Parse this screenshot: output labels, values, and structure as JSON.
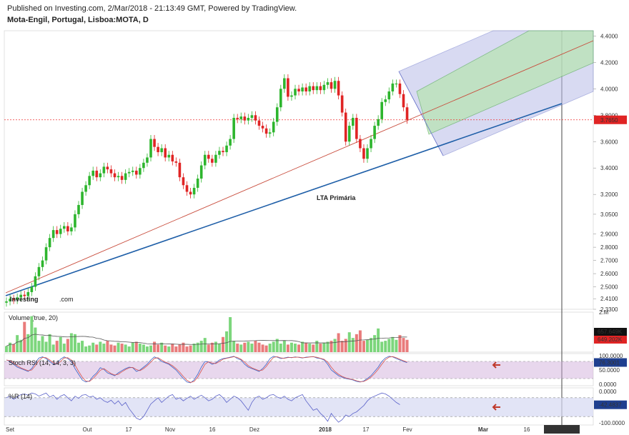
{
  "header": {
    "published": "Published on Investing.com, 2/Mar/2018 - 21:13:49 GMT, Powered by TradingView.",
    "symbol": "Mota-Engil, Portugal, Lisboa:MOTA, D"
  },
  "colors": {
    "up": "#2db52d",
    "down": "#e02424",
    "up_vol": "#7cd67c",
    "down_vol": "#e97b7b",
    "trend": "#1f5fa8",
    "channel_mid": "#c84a3a",
    "pitch_blue": "#b9bde8",
    "pitch_green": "#b7e4b0",
    "stoch": "#cda6d8",
    "wr": "#d6d8f2",
    "arrow": "#c0392b"
  },
  "chart_data": [
    {
      "type": "candlestick",
      "ylim": [
        2.33,
        4.44
      ],
      "yticks": [
        "4.4000",
        "4.2000",
        "4.0000",
        "3.8000",
        "3.6000",
        "3.4000",
        "3.2000",
        "3.0500",
        "2.9000",
        "2.8000",
        "2.7000",
        "2.6000",
        "2.5000",
        "2.4100",
        "2.3300"
      ],
      "xticks": [
        "Set",
        "Out",
        "17",
        "Nov",
        "16",
        "Dez",
        "2018",
        "17",
        "Fev",
        "Mar",
        "16",
        "2018-03-29"
      ],
      "last_price": "3.7650",
      "annotation": "LTA Primária",
      "close": [
        2.39,
        2.41,
        2.4,
        2.42,
        2.44,
        2.43,
        2.46,
        2.5,
        2.58,
        2.65,
        2.7,
        2.8,
        2.87,
        2.93,
        2.9,
        2.94,
        2.96,
        2.92,
        2.95,
        3.05,
        3.12,
        3.22,
        3.27,
        3.34,
        3.38,
        3.33,
        3.36,
        3.41,
        3.39,
        3.36,
        3.33,
        3.34,
        3.31,
        3.36,
        3.37,
        3.38,
        3.35,
        3.4,
        3.44,
        3.48,
        3.62,
        3.56,
        3.52,
        3.55,
        3.48,
        3.5,
        3.45,
        3.44,
        3.33,
        3.27,
        3.22,
        3.2,
        3.25,
        3.32,
        3.42,
        3.5,
        3.47,
        3.44,
        3.5,
        3.53,
        3.52,
        3.57,
        3.62,
        3.78,
        3.77,
        3.79,
        3.76,
        3.78,
        3.8,
        3.76,
        3.72,
        3.7,
        3.66,
        3.67,
        3.75,
        3.86,
        4.0,
        4.08,
        3.94,
        3.95,
        4.0,
        3.98,
        4.01,
        3.98,
        4.02,
        3.99,
        4.02,
        3.99,
        4.03,
        4.05,
        4.0,
        4.06,
        3.95,
        3.82,
        3.6,
        3.72,
        3.78,
        3.62,
        3.55,
        3.47,
        3.55,
        3.62,
        3.72,
        3.77,
        3.9,
        3.92,
        3.98,
        4.04,
        4.04,
        3.96,
        3.86,
        3.765
      ],
      "volume_label": "Volume (true, 20)",
      "volume_values": [
        "657.649K",
        "649.202K"
      ],
      "volume_max": "2.M",
      "volume": [
        0.32,
        0.5,
        0.42,
        0.9,
        0.65,
        1.6,
        0.95,
        1.9,
        1.3,
        0.6,
        0.85,
        0.55,
        0.95,
        0.4,
        0.6,
        0.8,
        0.45,
        0.7,
        1.0,
        0.95,
        0.5,
        0.6,
        0.3,
        0.35,
        0.5,
        0.4,
        0.55,
        0.45,
        0.6,
        0.4,
        0.35,
        0.5,
        0.45,
        0.4,
        0.3,
        0.5,
        0.55,
        0.45,
        0.4,
        0.3,
        0.35,
        0.55,
        0.4,
        0.5,
        0.35,
        0.3,
        0.45,
        0.3,
        0.4,
        0.5,
        0.3,
        0.35,
        0.45,
        0.5,
        0.6,
        0.75,
        0.4,
        0.5,
        0.55,
        0.45,
        0.8,
        1.1,
        1.85,
        0.6,
        0.45,
        0.4,
        0.5,
        0.55,
        0.45,
        0.6,
        0.5,
        0.4,
        0.35,
        0.45,
        0.55,
        0.7,
        0.45,
        0.6,
        0.4,
        0.5,
        0.45,
        0.4,
        0.55,
        0.5,
        0.45,
        0.4,
        0.6,
        0.45,
        0.5,
        0.55,
        0.6,
        0.7,
        1.0,
        0.6,
        0.7,
        1.05,
        0.75,
        0.95,
        1.15,
        0.6,
        0.65,
        0.75,
        0.9,
        1.25,
        0.55,
        0.6,
        0.7,
        0.8,
        0.65,
        0.9,
        0.75,
        0.65
      ],
      "stoch_label": "Stoch RSI (14, 14, 3, 3)",
      "stoch_ticks": [
        "100.0000",
        "76.3001",
        "50.0000",
        "0.0000"
      ],
      "stoch_last": "76.3001",
      "stoch": [
        85,
        80,
        70,
        60,
        55,
        50,
        45,
        55,
        75,
        92,
        96,
        90,
        80,
        70,
        72,
        88,
        96,
        90,
        80,
        55,
        35,
        15,
        8,
        12,
        28,
        40,
        58,
        52,
        40,
        35,
        30,
        40,
        48,
        55,
        60,
        58,
        45,
        50,
        60,
        70,
        85,
        96,
        90,
        80,
        75,
        70,
        60,
        50,
        35,
        20,
        8,
        5,
        15,
        35,
        60,
        80,
        78,
        70,
        75,
        85,
        90,
        92,
        95,
        98,
        90,
        85,
        70,
        60,
        55,
        50,
        45,
        55,
        70,
        90,
        98,
        95,
        90,
        92,
        95,
        93,
        96,
        94,
        92,
        95,
        96,
        97,
        92,
        90,
        85,
        70,
        50,
        40,
        30,
        25,
        20,
        18,
        15,
        10,
        8,
        12,
        20,
        30,
        45,
        60,
        80,
        92,
        98,
        96,
        90,
        85,
        80,
        76
      ],
      "wr_label": "%R (14)",
      "wr_ticks": [
        "0.0000",
        "-42.4837",
        "-100.0000"
      ],
      "wr_last": "-42.4837",
      "wr": [
        -20,
        -15,
        -25,
        -18,
        -10,
        -8,
        -12,
        -5,
        -8,
        -15,
        -10,
        -5,
        -18,
        -12,
        -25,
        -15,
        -10,
        -20,
        -30,
        -15,
        -22,
        -12,
        -10,
        -18,
        -15,
        -25,
        -20,
        -30,
        -35,
        -28,
        -40,
        -30,
        -45,
        -35,
        -55,
        -70,
        -85,
        -90,
        -80,
        -60,
        -40,
        -30,
        -20,
        -35,
        -25,
        -15,
        -10,
        -25,
        -20,
        -30,
        -22,
        -15,
        -25,
        -18,
        -12,
        -20,
        -30,
        -25,
        -15,
        -10,
        -20,
        -35,
        -25,
        -15,
        -20,
        -30,
        -45,
        -60,
        -35,
        -20,
        -15,
        -25,
        -20,
        -12,
        -10,
        -18,
        -22,
        -15,
        -25,
        -30,
        -20,
        -15,
        -10,
        -30,
        -45,
        -60,
        -55,
        -70,
        -80,
        -95,
        -70,
        -85,
        -98,
        -90,
        -75,
        -80,
        -70,
        -65,
        -55,
        -45,
        -30,
        -20,
        -15,
        -10,
        -5,
        -8,
        -15,
        -25,
        -35,
        -42
      ]
    }
  ]
}
